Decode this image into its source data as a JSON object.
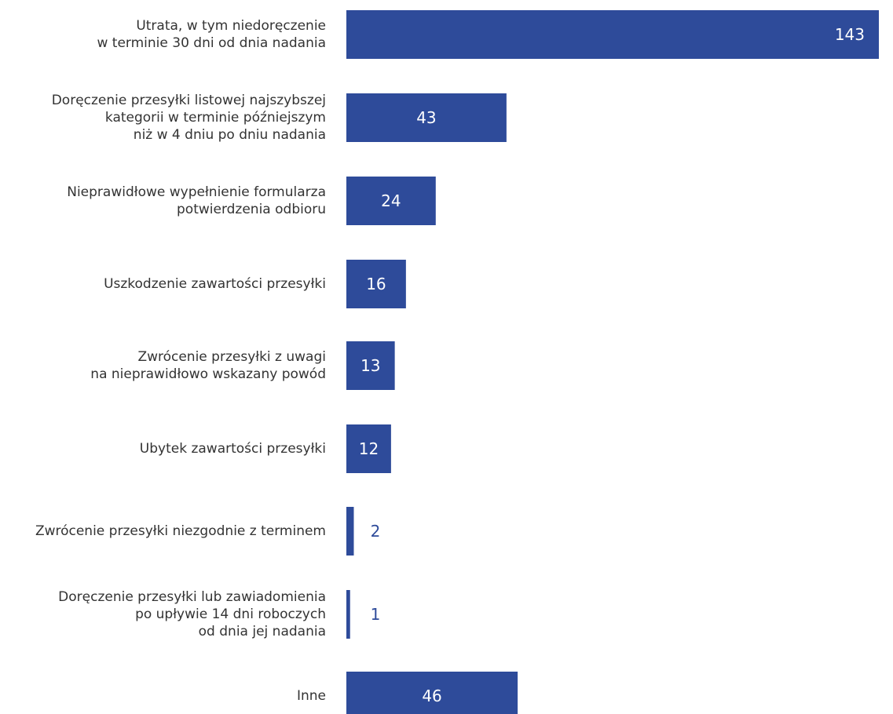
{
  "chart_data": {
    "type": "bar",
    "orientation": "horizontal",
    "categories": [
      "Utrata, w tym niedoręczenie\nw terminie 30 dni od dnia nadania",
      "Doręczenie przesyłki listowej najszybszej\nkategorii w terminie późniejszym\nniż w 4 dniu po dniu nadania",
      "Nieprawidłowe wypełnienie formularza\npotwierdzenia odbioru",
      "Uszkodzenie zawartości przesyłki",
      "Zwrócenie przesyłki z uwagi\nna nieprawidłowo wskazany powód",
      "Ubytek zawartości przesyłki",
      "Zwrócenie przesyłki niezgodnie z terminem",
      "Doręczenie przesyłki lub zawiadomienia\npo upływie 14 dni roboczych\nod dnia jej nadania",
      "Inne"
    ],
    "values": [
      143,
      43,
      24,
      16,
      13,
      12,
      2,
      1,
      46
    ],
    "bar_color": "#2E4B9A",
    "label_color_inside": "#ffffff",
    "label_color_outside": "#2E4B9A",
    "text_color": "#333333",
    "xlim": [
      0,
      143
    ],
    "grid": false,
    "legend": "none",
    "axes_visible": false
  }
}
